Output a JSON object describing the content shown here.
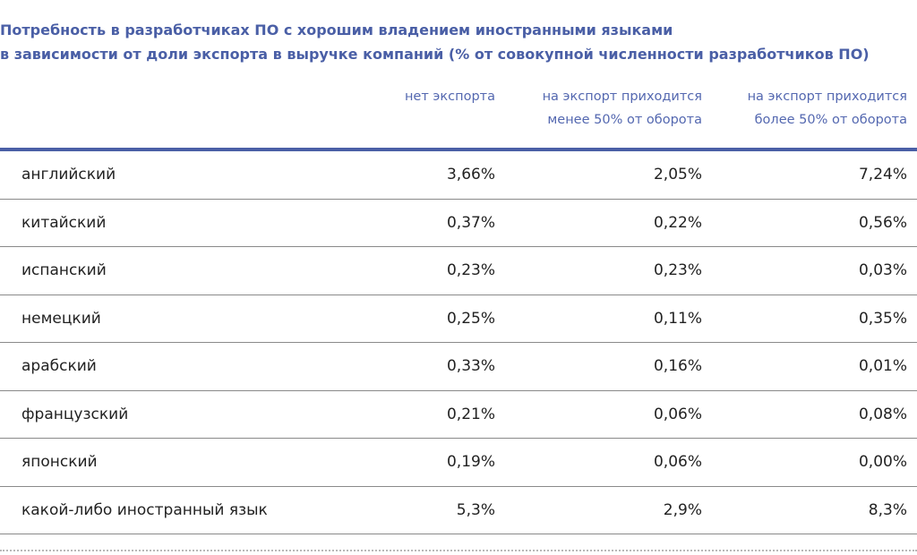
{
  "chart_data": {
    "type": "table",
    "title_lines": [
      "Потребность в разработчиках ПО с хорошим владением иностранными языками",
      "в зависимости от доли экспорта в выручке компаний (% от совокупной численности разработчиков ПО)"
    ],
    "columns": [
      {
        "lines": [
          "нет экспорта"
        ]
      },
      {
        "lines": [
          "на экспорт приходится",
          "менее 50% от оборота"
        ]
      },
      {
        "lines": [
          "на экспорт приходится",
          "более 50% от оборота"
        ]
      }
    ],
    "rows": [
      {
        "label": "английский",
        "values": [
          "3,66%",
          "2,05%",
          "7,24%"
        ]
      },
      {
        "label": "китайский",
        "values": [
          "0,37%",
          "0,22%",
          "0,56%"
        ]
      },
      {
        "label": "испанский",
        "values": [
          "0,23%",
          "0,23%",
          "0,03%"
        ]
      },
      {
        "label": "немецкий",
        "values": [
          "0,25%",
          "0,11%",
          "0,35%"
        ]
      },
      {
        "label": "арабский",
        "values": [
          "0,33%",
          "0,16%",
          "0,01%"
        ]
      },
      {
        "label": "французский",
        "values": [
          "0,21%",
          "0,06%",
          "0,08%"
        ]
      },
      {
        "label": "японский",
        "values": [
          "0,19%",
          "0,06%",
          "0,00%"
        ]
      },
      {
        "label": "какой-либо иностранный язык",
        "values": [
          "5,3%",
          "2,9%",
          "8,3%"
        ]
      }
    ]
  }
}
